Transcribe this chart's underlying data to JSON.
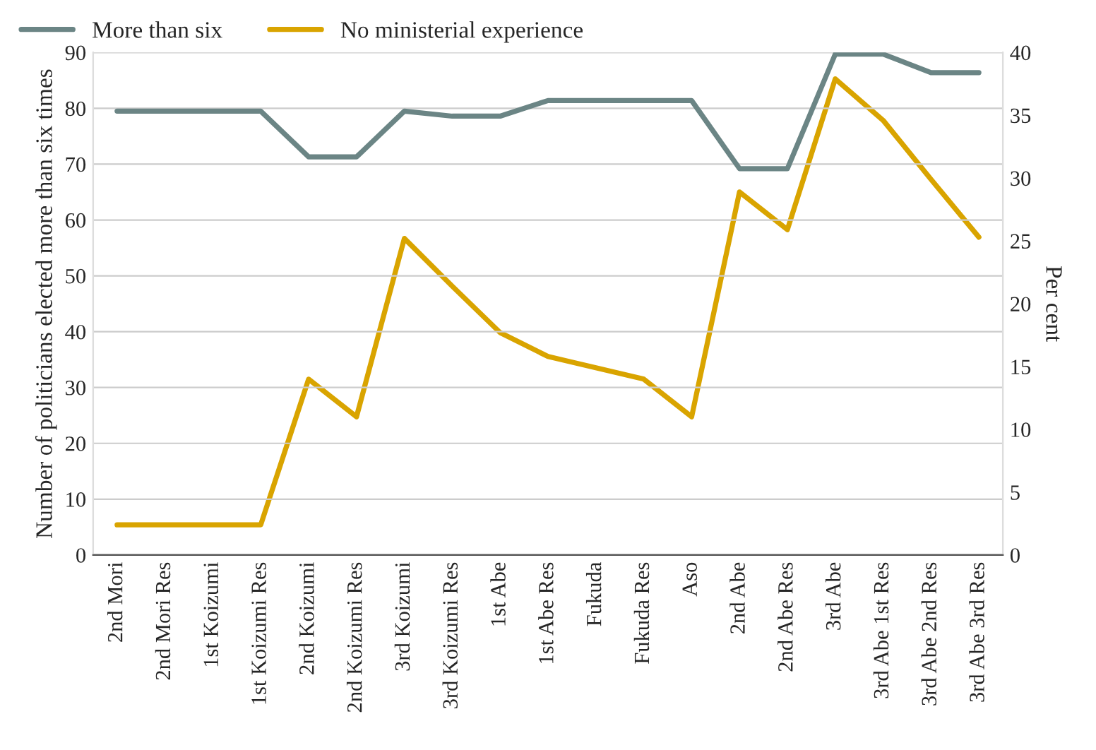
{
  "chart_data": {
    "type": "line",
    "categories": [
      "2nd Mori",
      "2nd Mori Res",
      "1st Koizumi",
      "1st Koizumi Res",
      "2nd Koizumi",
      "2nd Koizumi Res",
      "3rd Koizumi",
      "3rd Koizumi Res",
      "1st Abe",
      "1st Abe Res",
      "Fukuda",
      "Fukuda Res",
      "Aso",
      "2nd Abe",
      "2nd Abe Res",
      "3rd Abe",
      "3rd Abe 1st Res",
      "3rd Abe 2nd Res",
      "3rd Abe 3rd Res"
    ],
    "series": [
      {
        "name": "More than six",
        "color": "#6b8585",
        "values": [
          79.5,
          79.5,
          79.5,
          79.5,
          71.3,
          71.3,
          79.5,
          78.6,
          78.6,
          81.4,
          81.4,
          81.4,
          81.4,
          69.2,
          69.2,
          89.7,
          89.7,
          86.4,
          86.4
        ]
      },
      {
        "name": "No ministerial experience",
        "color": "#d9a400",
        "axis": "y2",
        "values": [
          2.4,
          2.4,
          2.4,
          2.4,
          14.0,
          11.0,
          25.2,
          21.4,
          17.7,
          15.8,
          14.9,
          14.0,
          11.0,
          28.9,
          25.9,
          37.9,
          34.6,
          29.9,
          25.3
        ]
      }
    ],
    "ylabel": "Number of politicians elected more than six times",
    "y2label": "Per cent",
    "ylim": [
      0,
      90
    ],
    "yticks": [
      0,
      10,
      20,
      30,
      40,
      50,
      60,
      70,
      80,
      90
    ],
    "y2lim": [
      0,
      40
    ],
    "y2ticks": [
      0,
      5,
      10,
      15,
      20,
      25,
      30,
      35,
      40
    ],
    "grid": "y",
    "legend": "top left",
    "marker": "none",
    "line_style": "solid"
  }
}
